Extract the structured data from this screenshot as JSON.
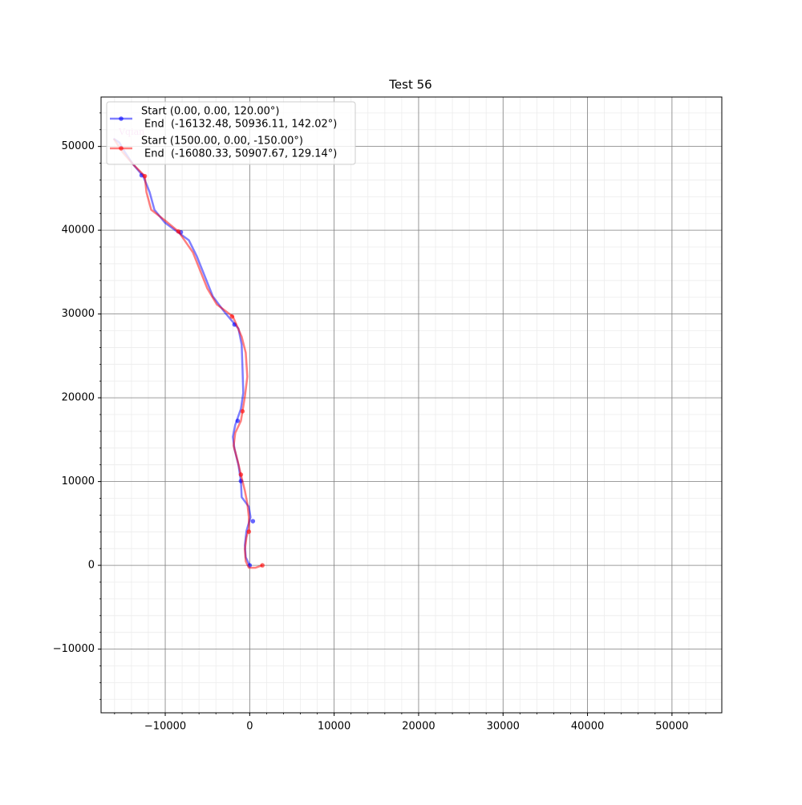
{
  "chart_data": {
    "type": "line",
    "title": "Test 56",
    "xlim": [
      -17600,
      55900
    ],
    "ylim": [
      -17600,
      55900
    ],
    "xticks": [
      {
        "value": -10000,
        "label": "−10000"
      },
      0,
      10000,
      20000,
      30000,
      40000,
      50000
    ],
    "yticks": [
      {
        "value": -10000,
        "label": "−10000"
      },
      0,
      10000,
      20000,
      30000,
      40000,
      50000
    ],
    "xminorticks": [
      -16000,
      -14000,
      -12000,
      -10000,
      -8000,
      -6000,
      -4000,
      -2000,
      0,
      2000,
      4000,
      6000,
      8000,
      10000,
      12000,
      14000,
      16000,
      18000,
      20000,
      22000,
      24000,
      26000,
      28000,
      30000,
      32000,
      34000,
      36000,
      38000,
      40000,
      42000,
      44000,
      46000,
      48000,
      50000,
      52000,
      54000
    ],
    "yminorticks": [
      -16000,
      -14000,
      -12000,
      -10000,
      -8000,
      -6000,
      -4000,
      -2000,
      0,
      2000,
      4000,
      6000,
      8000,
      10000,
      12000,
      14000,
      16000,
      18000,
      20000,
      22000,
      24000,
      26000,
      28000,
      30000,
      32000,
      34000,
      36000,
      38000,
      40000,
      42000,
      44000,
      46000,
      48000,
      50000,
      52000,
      54000
    ],
    "grid": true,
    "legend": "upper left",
    "series": [
      {
        "name": "Start (0.00, 0.00, 120.00°)",
        "name_line2": "End  (-16132.48, 50936.11, 142.02°)",
        "color": "#0000ff",
        "x": [
          0,
          -470,
          -570,
          -380,
          100,
          -100,
          -950,
          -1040,
          -1330,
          -1800,
          -1990,
          -1710,
          -1040,
          -760,
          -850,
          -950,
          -1330,
          -2940,
          -4360,
          -5310,
          -6260,
          -7200,
          -10050,
          -11280,
          -11850,
          -12610,
          -13840,
          -14790,
          -15450,
          -16132.48
        ],
        "values": [
          0,
          960,
          2400,
          4120,
          5750,
          6990,
          8140,
          10060,
          11970,
          13890,
          15330,
          16770,
          18680,
          20600,
          23470,
          26350,
          28260,
          30180,
          32090,
          34490,
          36880,
          38800,
          40910,
          42440,
          44550,
          46460,
          47900,
          49340,
          50490,
          50936.11
        ],
        "marker_x": [
          0,
          380,
          -1040,
          -1420,
          -1800,
          -8150,
          -12800
        ],
        "marker_y": [
          0,
          5270,
          10060,
          17240,
          28740,
          39760,
          46560
        ]
      },
      {
        "name": "Start (1500.00, 0.00, -150.00°)",
        "name_line2": "End  (-16080.33, 50907.67, 129.14°)",
        "color": "#ff0000",
        "x": [
          1500,
          660,
          -100,
          -470,
          -570,
          -380,
          -100,
          -100,
          -280,
          -570,
          -1040,
          -1420,
          -1900,
          -1710,
          -1040,
          -850,
          -570,
          -280,
          -470,
          -950,
          -1990,
          -3890,
          -5020,
          -5780,
          -6730,
          -8440,
          -10050,
          -11660,
          -12230,
          -12420,
          -13840,
          -15070,
          -16080.33
        ],
        "values": [
          0,
          -290,
          -290,
          480,
          1920,
          3350,
          4310,
          5750,
          7380,
          8910,
          10830,
          12450,
          14270,
          15810,
          17240,
          18390,
          20120,
          22510,
          25390,
          27300,
          29700,
          31140,
          33050,
          34970,
          37360,
          39850,
          41190,
          42440,
          44550,
          46460,
          47900,
          49340,
          50907.67
        ],
        "marker_x": [
          1500,
          -100,
          -1040,
          -850,
          -2090,
          -8440,
          -12420
        ],
        "marker_y": [
          0,
          4020,
          10830,
          18390,
          29700,
          39850,
          46460
        ]
      }
    ],
    "annotation": {
      "text": "Vqian",
      "x": -15500,
      "y": 51700,
      "color": "#e8a0e0"
    }
  }
}
